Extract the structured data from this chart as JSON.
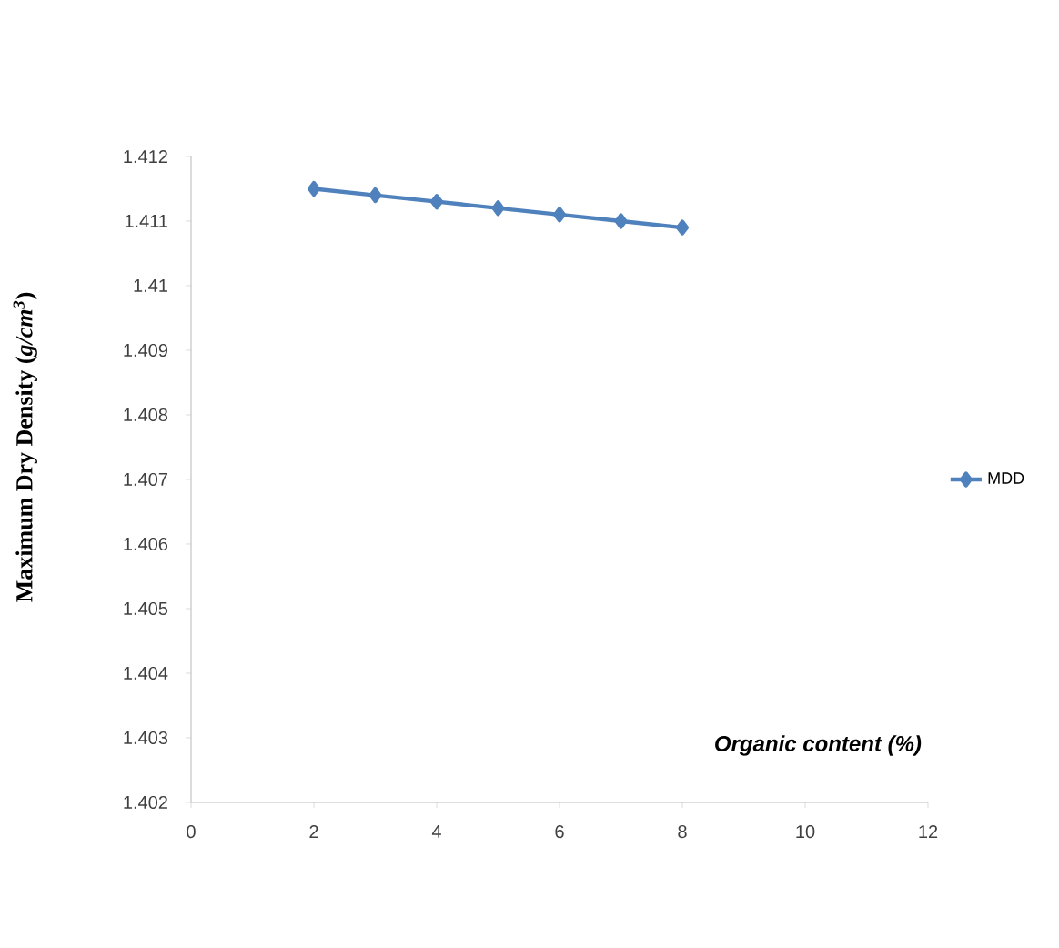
{
  "chart_data": {
    "type": "line",
    "xlabel": "Organic content (%)",
    "ylabel": "Maximum Dry Density (*g/cm$^{3}$*)",
    "x": [
      2,
      3,
      4,
      5,
      6,
      7,
      8
    ],
    "series": [
      {
        "name": "MDD",
        "color": "#4f81bd",
        "values": [
          1.4115,
          1.4114,
          1.4113,
          1.4112,
          1.4111,
          1.411,
          1.4109
        ]
      }
    ],
    "xlim": [
      0,
      12
    ],
    "xticks": [
      0,
      2,
      4,
      6,
      8,
      10,
      12
    ],
    "ylim": [
      1.402,
      1.412
    ],
    "yticks": [
      1.402,
      1.403,
      1.404,
      1.405,
      1.406,
      1.407,
      1.408,
      1.409,
      1.41,
      1.411,
      1.412
    ],
    "grid": false,
    "legend": "right",
    "marker": "diamond",
    "line_style": "solid"
  }
}
